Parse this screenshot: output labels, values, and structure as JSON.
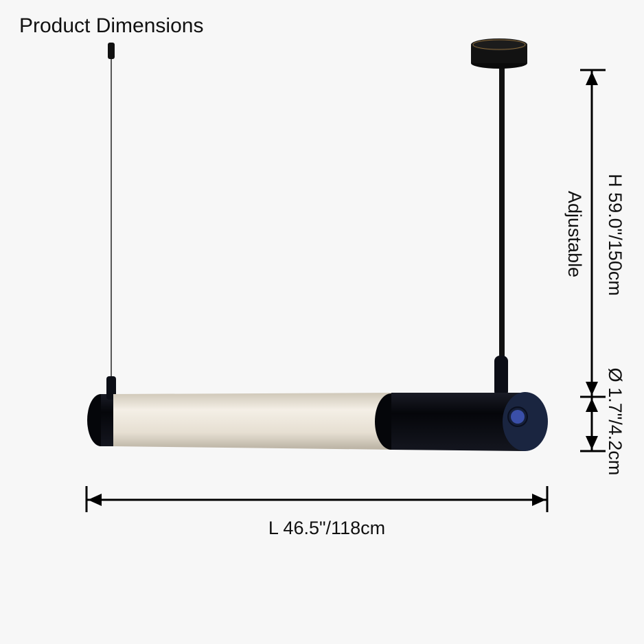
{
  "title": "Product Dimensions",
  "dimensions": {
    "height": "H 59.0\"/150cm",
    "height_note": "Adjustable",
    "diameter": "Ø 1.7\"/4.2cm",
    "length": "L 46.5\"/118cm"
  },
  "colors": {
    "background": "#f7f7f7",
    "fixture": "#0d0f18",
    "glow": "#ece6da",
    "button": "#3a4fa8"
  }
}
